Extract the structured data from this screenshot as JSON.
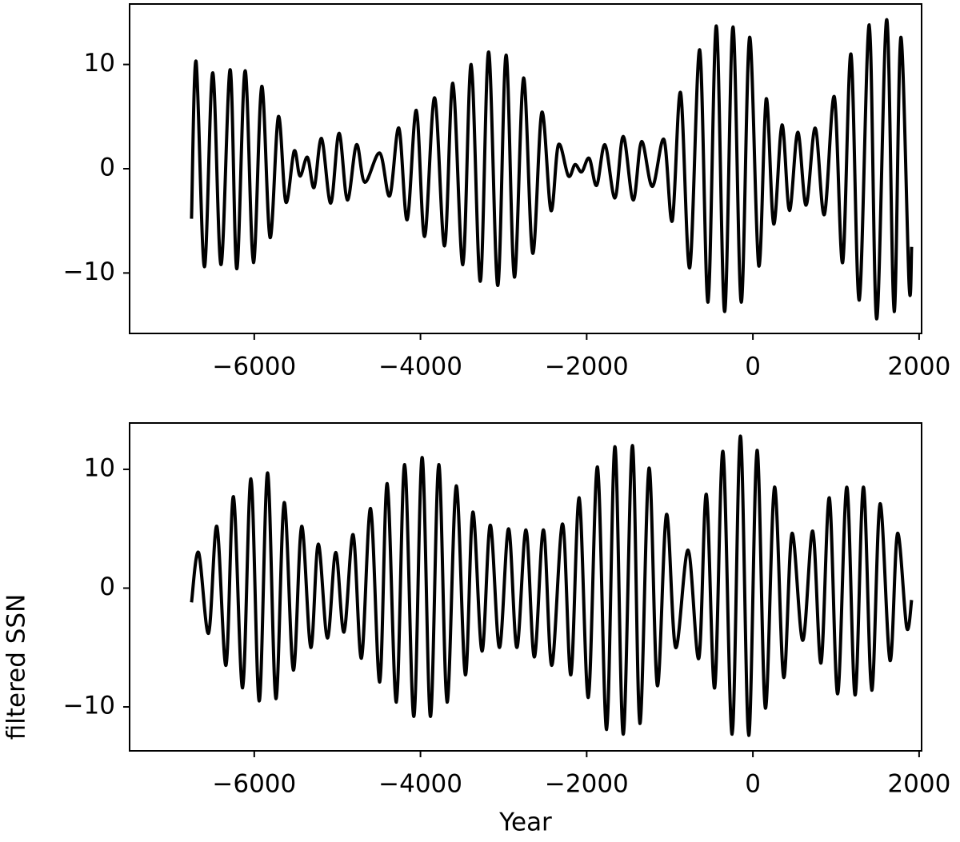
{
  "chart_data": [
    {
      "type": "line",
      "color": "#000000",
      "xlim": [
        -7500,
        2030
      ],
      "ylim": [
        -15.8,
        15.8
      ],
      "xticks": [
        {
          "value": -6000,
          "label": "−6000"
        },
        {
          "value": -4000,
          "label": "−4000"
        },
        {
          "value": -2000,
          "label": "−2000"
        },
        0,
        2000
      ],
      "yticks": [
        {
          "value": -10,
          "label": "−10"
        },
        0,
        10
      ],
      "x": [
        -6755,
        -6700,
        -6600,
        -6500,
        -6400,
        -6290,
        -6210,
        -6110,
        -6010,
        -5910,
        -5810,
        -5710,
        -5620,
        -5520,
        -5450,
        -5360,
        -5280,
        -5190,
        -5080,
        -4980,
        -4880,
        -4770,
        -4670,
        -4490,
        -4370,
        -4260,
        -4160,
        -4050,
        -3950,
        -3830,
        -3710,
        -3610,
        -3490,
        -3390,
        -3280,
        -3180,
        -3070,
        -2970,
        -2870,
        -2760,
        -2650,
        -2540,
        -2430,
        -2340,
        -2220,
        -2140,
        -2060,
        -1970,
        -1880,
        -1780,
        -1660,
        -1560,
        -1440,
        -1340,
        -1210,
        -1070,
        -970,
        -870,
        -760,
        -640,
        -540,
        -440,
        -340,
        -240,
        -140,
        -40,
        70,
        160,
        250,
        350,
        440,
        540,
        640,
        750,
        860,
        980,
        1080,
        1180,
        1280,
        1400,
        1490,
        1610,
        1700,
        1780,
        1880,
        1910
      ],
      "values": [
        -4.8,
        10.3,
        -9.4,
        9.2,
        -9.2,
        9.5,
        -9.6,
        9.4,
        -9.0,
        7.9,
        -6.6,
        5.0,
        -3.2,
        1.7,
        -0.7,
        1.1,
        -1.8,
        2.9,
        -3.3,
        3.4,
        -3.0,
        2.3,
        -1.3,
        1.5,
        -2.6,
        3.9,
        -4.9,
        5.6,
        -6.5,
        6.8,
        -7.4,
        8.2,
        -9.2,
        10.0,
        -10.8,
        11.2,
        -11.2,
        10.9,
        -10.4,
        8.7,
        -8.1,
        5.4,
        -4.0,
        2.3,
        -0.7,
        0.4,
        -0.3,
        1.0,
        -1.6,
        2.3,
        -2.8,
        3.1,
        -3.0,
        2.6,
        -1.7,
        2.8,
        -5.0,
        7.3,
        -9.5,
        11.4,
        -12.8,
        13.7,
        -13.7,
        13.6,
        -12.8,
        12.6,
        -9.3,
        6.7,
        -5.3,
        4.2,
        -4.0,
        3.5,
        -3.5,
        3.9,
        -4.4,
        6.9,
        -9.0,
        11.0,
        -12.6,
        13.8,
        -14.4,
        14.3,
        -13.7,
        12.6,
        -11.2,
        -7.5
      ]
    },
    {
      "type": "line",
      "color": "#000000",
      "xlabel": "Year",
      "ylabel": "filtered SSN",
      "xlim": [
        -7500,
        2030
      ],
      "ylim": [
        -13.7,
        13.9
      ],
      "xticks": [
        {
          "value": -6000,
          "label": "−6000"
        },
        {
          "value": -4000,
          "label": "−4000"
        },
        {
          "value": -2000,
          "label": "−2000"
        },
        0,
        2000
      ],
      "yticks": [
        {
          "value": -10,
          "label": "−10"
        },
        0,
        10
      ],
      "x": [
        -6755,
        -6670,
        -6550,
        -6450,
        -6340,
        -6250,
        -6140,
        -6040,
        -5940,
        -5840,
        -5740,
        -5640,
        -5530,
        -5430,
        -5320,
        -5230,
        -5120,
        -5020,
        -4920,
        -4810,
        -4710,
        -4600,
        -4490,
        -4400,
        -4290,
        -4190,
        -4080,
        -3980,
        -3880,
        -3780,
        -3680,
        -3570,
        -3460,
        -3370,
        -3260,
        -3160,
        -3050,
        -2940,
        -2840,
        -2730,
        -2630,
        -2520,
        -2420,
        -2290,
        -2190,
        -2090,
        -1980,
        -1870,
        -1760,
        -1660,
        -1560,
        -1450,
        -1360,
        -1250,
        -1150,
        -1040,
        -930,
        -780,
        -650,
        -560,
        -460,
        -360,
        -250,
        -150,
        -50,
        50,
        150,
        260,
        370,
        470,
        600,
        720,
        820,
        920,
        1020,
        1130,
        1230,
        1330,
        1430,
        1530,
        1650,
        1740,
        1850,
        1910
      ],
      "values": [
        -1.2,
        3.0,
        -3.8,
        5.2,
        -6.5,
        7.7,
        -8.4,
        9.2,
        -9.5,
        9.7,
        -9.3,
        7.2,
        -6.9,
        5.2,
        -5.0,
        3.7,
        -4.2,
        3.0,
        -3.7,
        4.5,
        -5.9,
        6.7,
        -7.9,
        8.8,
        -9.6,
        10.4,
        -10.8,
        11.0,
        -10.8,
        10.4,
        -9.6,
        8.6,
        -7.3,
        6.4,
        -5.3,
        5.3,
        -5.0,
        5.0,
        -5.0,
        4.9,
        -5.8,
        4.9,
        -6.5,
        5.4,
        -7.3,
        7.6,
        -9.2,
        10.2,
        -11.9,
        11.9,
        -12.3,
        12.0,
        -11.4,
        10.1,
        -8.2,
        6.2,
        -5.0,
        3.2,
        -5.9,
        7.9,
        -8.4,
        11.5,
        -12.3,
        12.8,
        -12.4,
        11.6,
        -10.1,
        8.5,
        -7.5,
        4.6,
        -4.4,
        4.8,
        -6.3,
        7.6,
        -8.9,
        8.5,
        -9.0,
        8.5,
        -8.6,
        7.1,
        -6.1,
        4.6,
        -3.3,
        -1.0
      ]
    }
  ]
}
